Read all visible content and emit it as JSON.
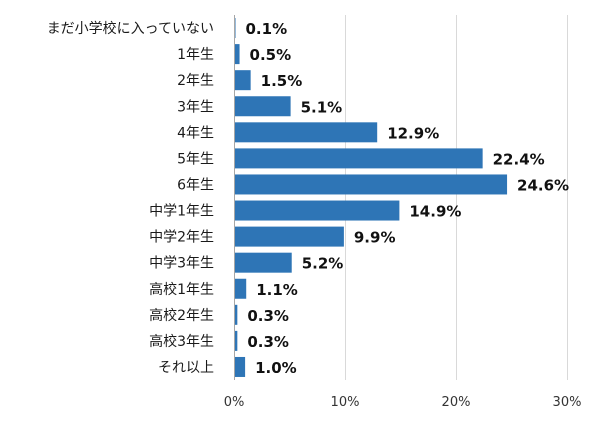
{
  "chart_data": {
    "type": "bar",
    "orientation": "horizontal",
    "categories": [
      "まだ小学校に入っていない",
      "1年生",
      "2年生",
      "3年生",
      "4年生",
      "5年生",
      "6年生",
      "中学1年生",
      "中学2年生",
      "中学3年生",
      "高校1年生",
      "高校2年生",
      "高校3年生",
      "それ以上"
    ],
    "values": [
      0.1,
      0.5,
      1.5,
      5.1,
      12.9,
      22.4,
      24.6,
      14.9,
      9.9,
      5.2,
      1.1,
      0.3,
      0.3,
      1.0
    ],
    "value_labels": [
      "0.1%",
      "0.5%",
      "1.5%",
      "5.1%",
      "12.9%",
      "22.4%",
      "24.6%",
      "14.9%",
      "9.9%",
      "5.2%",
      "1.1%",
      "0.3%",
      "0.3%",
      "1.0%"
    ],
    "xlim": [
      0,
      30
    ],
    "xticks": [
      0,
      10,
      20,
      30
    ],
    "xtick_labels": [
      "0%",
      "10%",
      "20%",
      "30%"
    ],
    "grid": true,
    "legend": "none",
    "bar_color": "#2e75b6"
  }
}
